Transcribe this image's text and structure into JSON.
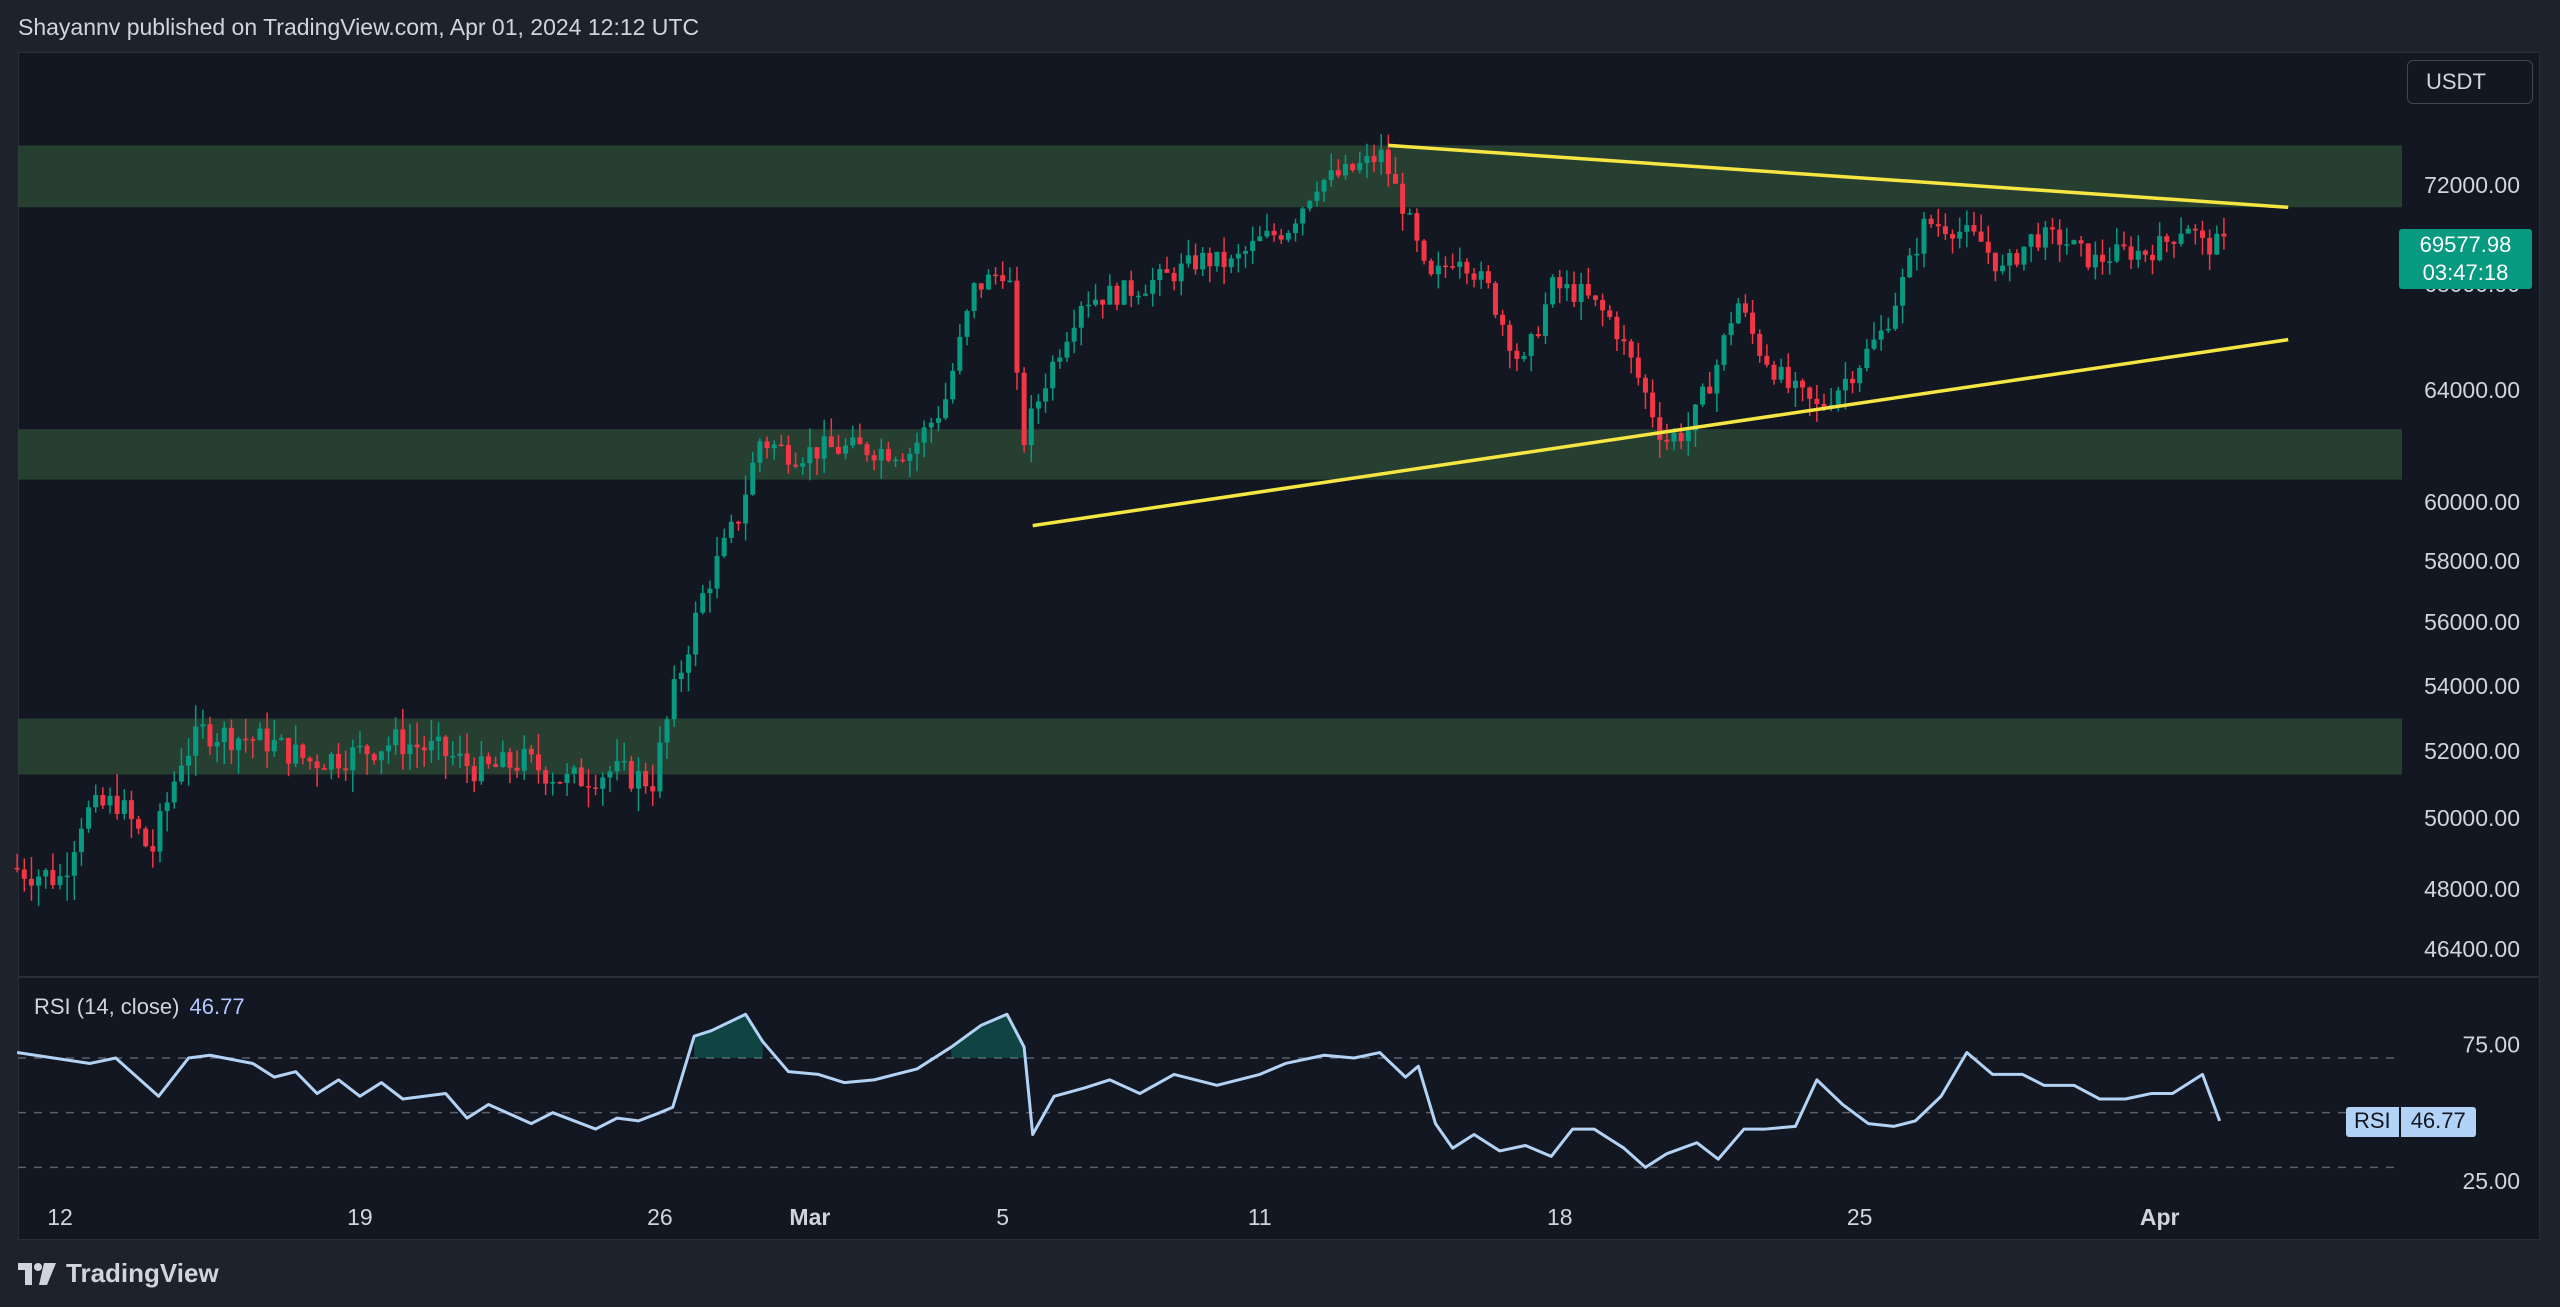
{
  "header": {
    "text": "Shayannv published on TradingView.com, Apr 01, 2024 12:12 UTC"
  },
  "toolbar": {
    "currency": "USDT"
  },
  "price_tag": {
    "price": "69577.98",
    "countdown": "03:47:18"
  },
  "rsi": {
    "legend_label": "RSI (14, close)",
    "value": "46.77",
    "tag_label": "RSI",
    "tag_value": "46.77"
  },
  "footer": {
    "brand": "TradingView"
  },
  "colors": {
    "up": "#089981",
    "down": "#f23645",
    "zone": "#2b4734",
    "trendline": "#f5e642",
    "rsi_line": "#b2d3f5",
    "background": "#131722"
  },
  "chart_data": [
    {
      "type": "candlestick",
      "symbol_currency": "USDT",
      "y_axis_ticks": [
        72000,
        68000,
        64000,
        60000,
        58000,
        56000,
        54000,
        52000,
        50000,
        48000,
        46400
      ],
      "y_axis_tick_labels": [
        "72000.00",
        "68000.00",
        "64000.00",
        "60000.00",
        "58000.00",
        "56000.00",
        "54000.00",
        "52000.00",
        "50000.00",
        "48000.00",
        "46400.00"
      ],
      "x_axis_ticks": [
        "12",
        "19",
        "26",
        "Mar",
        "5",
        "11",
        "18",
        "25",
        "Apr"
      ],
      "x_tick_days": [
        0,
        7,
        14,
        17.5,
        22,
        28,
        35,
        42,
        49
      ],
      "last_price": 69577.98,
      "support_resistance_zones": [
        {
          "low": 71100,
          "high": 73600
        },
        {
          "low": 60800,
          "high": 62600
        },
        {
          "low": 51300,
          "high": 53000
        }
      ],
      "trendlines": [
        {
          "from": {
            "day": 31.0,
            "price": 73600
          },
          "to": {
            "day": 52.0,
            "price": 71100
          }
        },
        {
          "from": {
            "day": 22.7,
            "price": 59200
          },
          "to": {
            "day": 52.0,
            "price": 65900
          }
        }
      ],
      "price_path": [
        [
          -1.0,
          48600
        ],
        [
          0.2,
          48300
        ],
        [
          0.7,
          50100
        ],
        [
          1.5,
          50500
        ],
        [
          2.3,
          49000
        ],
        [
          3.0,
          51800
        ],
        [
          3.5,
          52600
        ],
        [
          5.0,
          52300
        ],
        [
          6.0,
          51700
        ],
        [
          7.0,
          51900
        ],
        [
          8.0,
          52300
        ],
        [
          9.0,
          52000
        ],
        [
          10.0,
          51400
        ],
        [
          11.0,
          51700
        ],
        [
          12.0,
          51100
        ],
        [
          13.0,
          51400
        ],
        [
          14.0,
          51100
        ],
        [
          14.5,
          53800
        ],
        [
          15.2,
          57000
        ],
        [
          16.0,
          59500
        ],
        [
          16.5,
          62200
        ],
        [
          17.3,
          61700
        ],
        [
          18.0,
          61900
        ],
        [
          19.0,
          61900
        ],
        [
          20.0,
          61800
        ],
        [
          20.8,
          63500
        ],
        [
          21.5,
          67800
        ],
        [
          22.3,
          68700
        ],
        [
          22.6,
          62000
        ],
        [
          23.2,
          64500
        ],
        [
          24.0,
          67400
        ],
        [
          25.0,
          67700
        ],
        [
          26.0,
          68300
        ],
        [
          26.8,
          69000
        ],
        [
          27.5,
          68800
        ],
        [
          28.2,
          69800
        ],
        [
          28.8,
          70200
        ],
        [
          29.5,
          72100
        ],
        [
          30.2,
          72500
        ],
        [
          31.0,
          73200
        ],
        [
          31.6,
          70800
        ],
        [
          32.1,
          68000
        ],
        [
          32.8,
          69300
        ],
        [
          33.5,
          67800
        ],
        [
          34.3,
          64800
        ],
        [
          35.0,
          67900
        ],
        [
          35.7,
          67600
        ],
        [
          36.4,
          66600
        ],
        [
          37.1,
          64100
        ],
        [
          37.6,
          62200
        ],
        [
          38.2,
          62600
        ],
        [
          38.8,
          64800
        ],
        [
          39.3,
          67400
        ],
        [
          39.8,
          65600
        ],
        [
          40.5,
          64100
        ],
        [
          41.2,
          63300
        ],
        [
          42.0,
          64700
        ],
        [
          42.7,
          66200
        ],
        [
          43.2,
          68200
        ],
        [
          43.7,
          70500
        ],
        [
          44.3,
          70300
        ],
        [
          45.0,
          69700
        ],
        [
          45.5,
          68500
        ],
        [
          46.2,
          69900
        ],
        [
          46.9,
          69800
        ],
        [
          47.6,
          68900
        ],
        [
          48.3,
          69300
        ],
        [
          48.9,
          69300
        ],
        [
          49.4,
          69800
        ],
        [
          49.8,
          70500
        ],
        [
          50.2,
          69500
        ],
        [
          50.5,
          69600
        ]
      ]
    },
    {
      "type": "line",
      "name": "RSI (14, close)",
      "y_axis_ticks": [
        75,
        25
      ],
      "y_axis_tick_labels": [
        "75.00",
        "25.00"
      ],
      "reference_levels": [
        70,
        50,
        30
      ],
      "last_value": 46.77,
      "x": [
        -1.0,
        0.7,
        1.3,
        2.3,
        3.0,
        3.5,
        4.5,
        5.0,
        5.5,
        6.0,
        6.5,
        7.0,
        7.5,
        8.0,
        9.0,
        9.5,
        10.0,
        11.0,
        11.5,
        12.5,
        13.0,
        13.5,
        14.0,
        14.3,
        14.8,
        15.2,
        16.0,
        16.4,
        17.0,
        17.7,
        18.3,
        19.0,
        20.0,
        20.8,
        21.5,
        22.1,
        22.5,
        22.7,
        23.2,
        23.9,
        24.5,
        25.2,
        26.0,
        27.0,
        28.0,
        28.6,
        29.5,
        30.2,
        30.8,
        31.4,
        31.7,
        32.1,
        32.5,
        33.0,
        33.6,
        34.2,
        34.8,
        35.3,
        35.8,
        36.5,
        37.0,
        37.5,
        38.2,
        38.7,
        39.3,
        39.8,
        40.5,
        41.0,
        41.6,
        42.2,
        42.8,
        43.3,
        43.9,
        44.5,
        45.1,
        45.8,
        46.3,
        47.0,
        47.6,
        48.2,
        48.8,
        49.3,
        49.8,
        50.0,
        50.4
      ],
      "values": [
        72,
        68,
        70,
        56,
        70,
        71,
        68,
        63,
        65,
        57,
        62,
        56,
        61,
        55,
        57,
        48,
        53,
        46,
        50,
        44,
        48,
        47,
        50,
        52,
        78,
        80,
        86,
        76,
        65,
        64,
        61,
        62,
        66,
        74,
        82,
        86,
        74,
        42,
        56,
        59,
        62,
        57,
        64,
        60,
        64,
        68,
        71,
        70,
        72,
        63,
        67,
        46,
        37,
        42,
        36,
        38,
        34,
        44,
        44,
        37,
        30,
        35,
        39,
        33,
        44,
        44,
        45,
        62,
        53,
        46,
        45,
        47,
        56,
        72,
        64,
        64,
        60,
        60,
        55,
        55,
        57,
        57,
        62,
        64,
        47
      ]
    }
  ]
}
